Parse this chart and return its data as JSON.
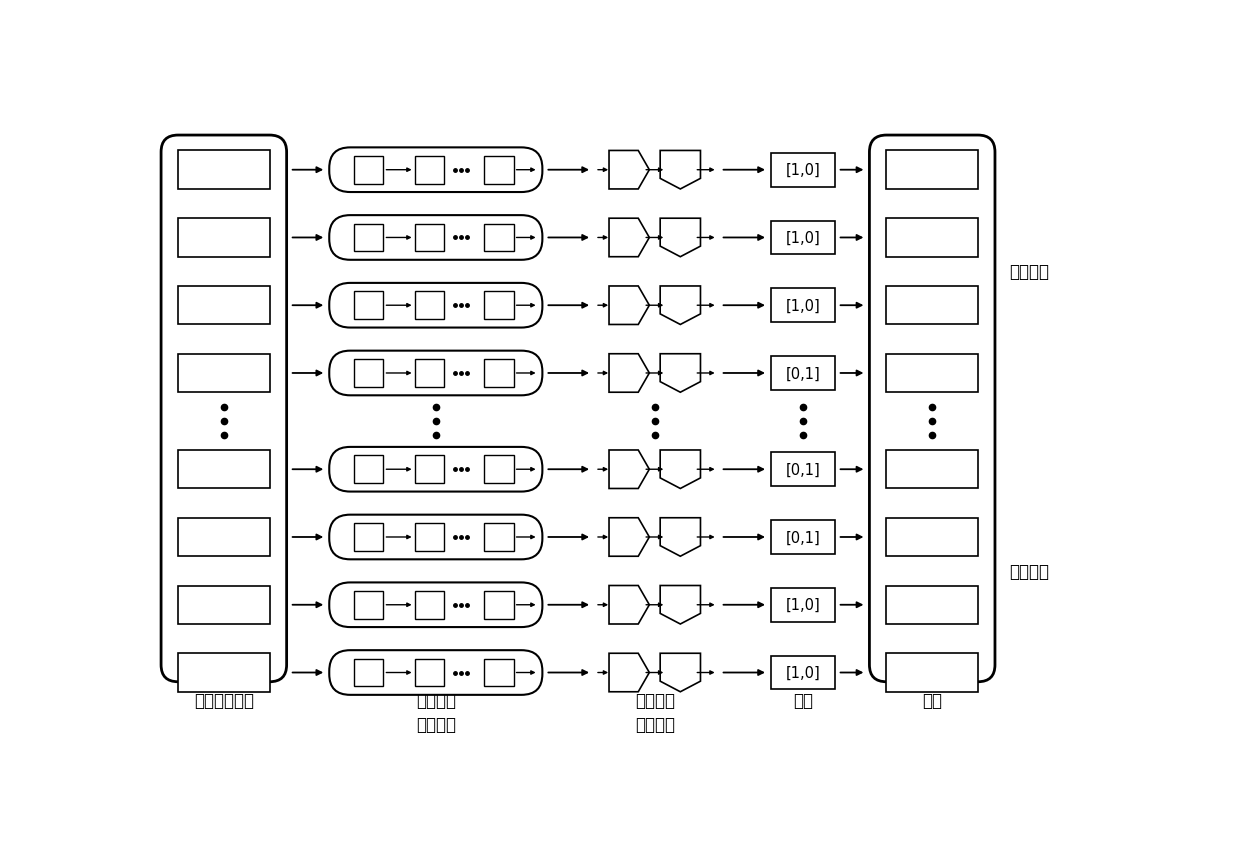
{
  "output_labels_top": [
    "[1,0]",
    "[1,0]",
    "[1,0]",
    "[0,1]"
  ],
  "output_labels_bottom": [
    "[0,1]",
    "[0,1]",
    "[1,0]",
    "[1,0]"
  ],
  "label_col1": "心脏超声视频",
  "label_col2_line1": "卷积神经",
  "label_col2_line2": "网络模型",
  "label_col3_line1": "循环神经",
  "label_col3_line2": "网络模型",
  "label_col4": "输出",
  "label_col5": "预测",
  "label_right_top": "舒张末期",
  "label_right_bottom": "收缩末期",
  "bg_color": "#ffffff",
  "box_color": "#000000"
}
